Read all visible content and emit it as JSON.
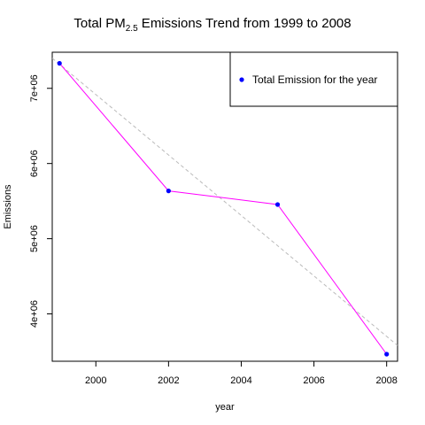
{
  "title": {
    "prefix": "Total PM",
    "subscript": "2.5",
    "suffix": " Emissions Trend from 1999 to 2008"
  },
  "chart_data": {
    "type": "line",
    "title": "Total PM2.5 Emissions Trend from 1999 to 2008",
    "xlabel": "year",
    "ylabel": "Emissions",
    "x_ticks": [
      "2000",
      "2002",
      "2004",
      "2006",
      "2008"
    ],
    "y_ticks": [
      "4e+06",
      "5e+06",
      "6e+06",
      "7e+06"
    ],
    "xlim": [
      1998.8,
      2008.3
    ],
    "ylim": [
      3370000,
      7480000
    ],
    "series": [
      {
        "name": "Total Emission for the year",
        "color": "#ff00ff",
        "marker_color": "#0000ff",
        "x": [
          1999,
          2002,
          2005,
          2008
        ],
        "y": [
          7332967,
          5635780,
          5454703,
          3464206
        ]
      }
    ],
    "trend_line": {
      "color": "#bbbbbb",
      "style": "dashed",
      "x": [
        1998.8,
        2008.3
      ],
      "y": [
        7400000,
        3580000
      ]
    },
    "legend": {
      "position": "top-right",
      "entries": [
        "Total Emission for the year"
      ]
    },
    "grid": false
  }
}
